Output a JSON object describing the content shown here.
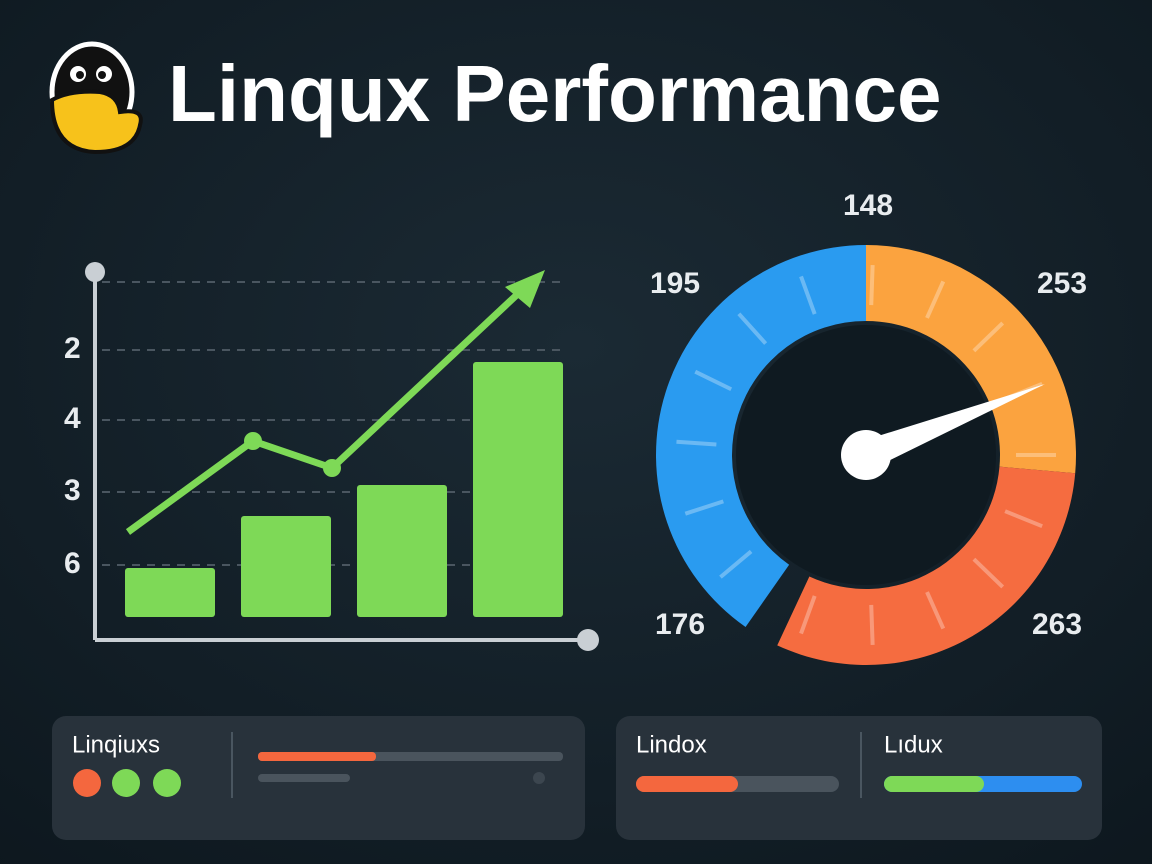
{
  "header": {
    "title": "Linqux Performance"
  },
  "chart": {
    "y_labels": [
      2,
      4,
      3,
      6
    ]
  },
  "gauge": {
    "top": 148,
    "top_left": 195,
    "top_right": 253,
    "bottom_left": 176,
    "bottom_right": 263
  },
  "panels": [
    {
      "title": "Linqiuxs"
    },
    {
      "title": "Lindox"
    },
    {
      "title": "Lıdux"
    }
  ]
}
